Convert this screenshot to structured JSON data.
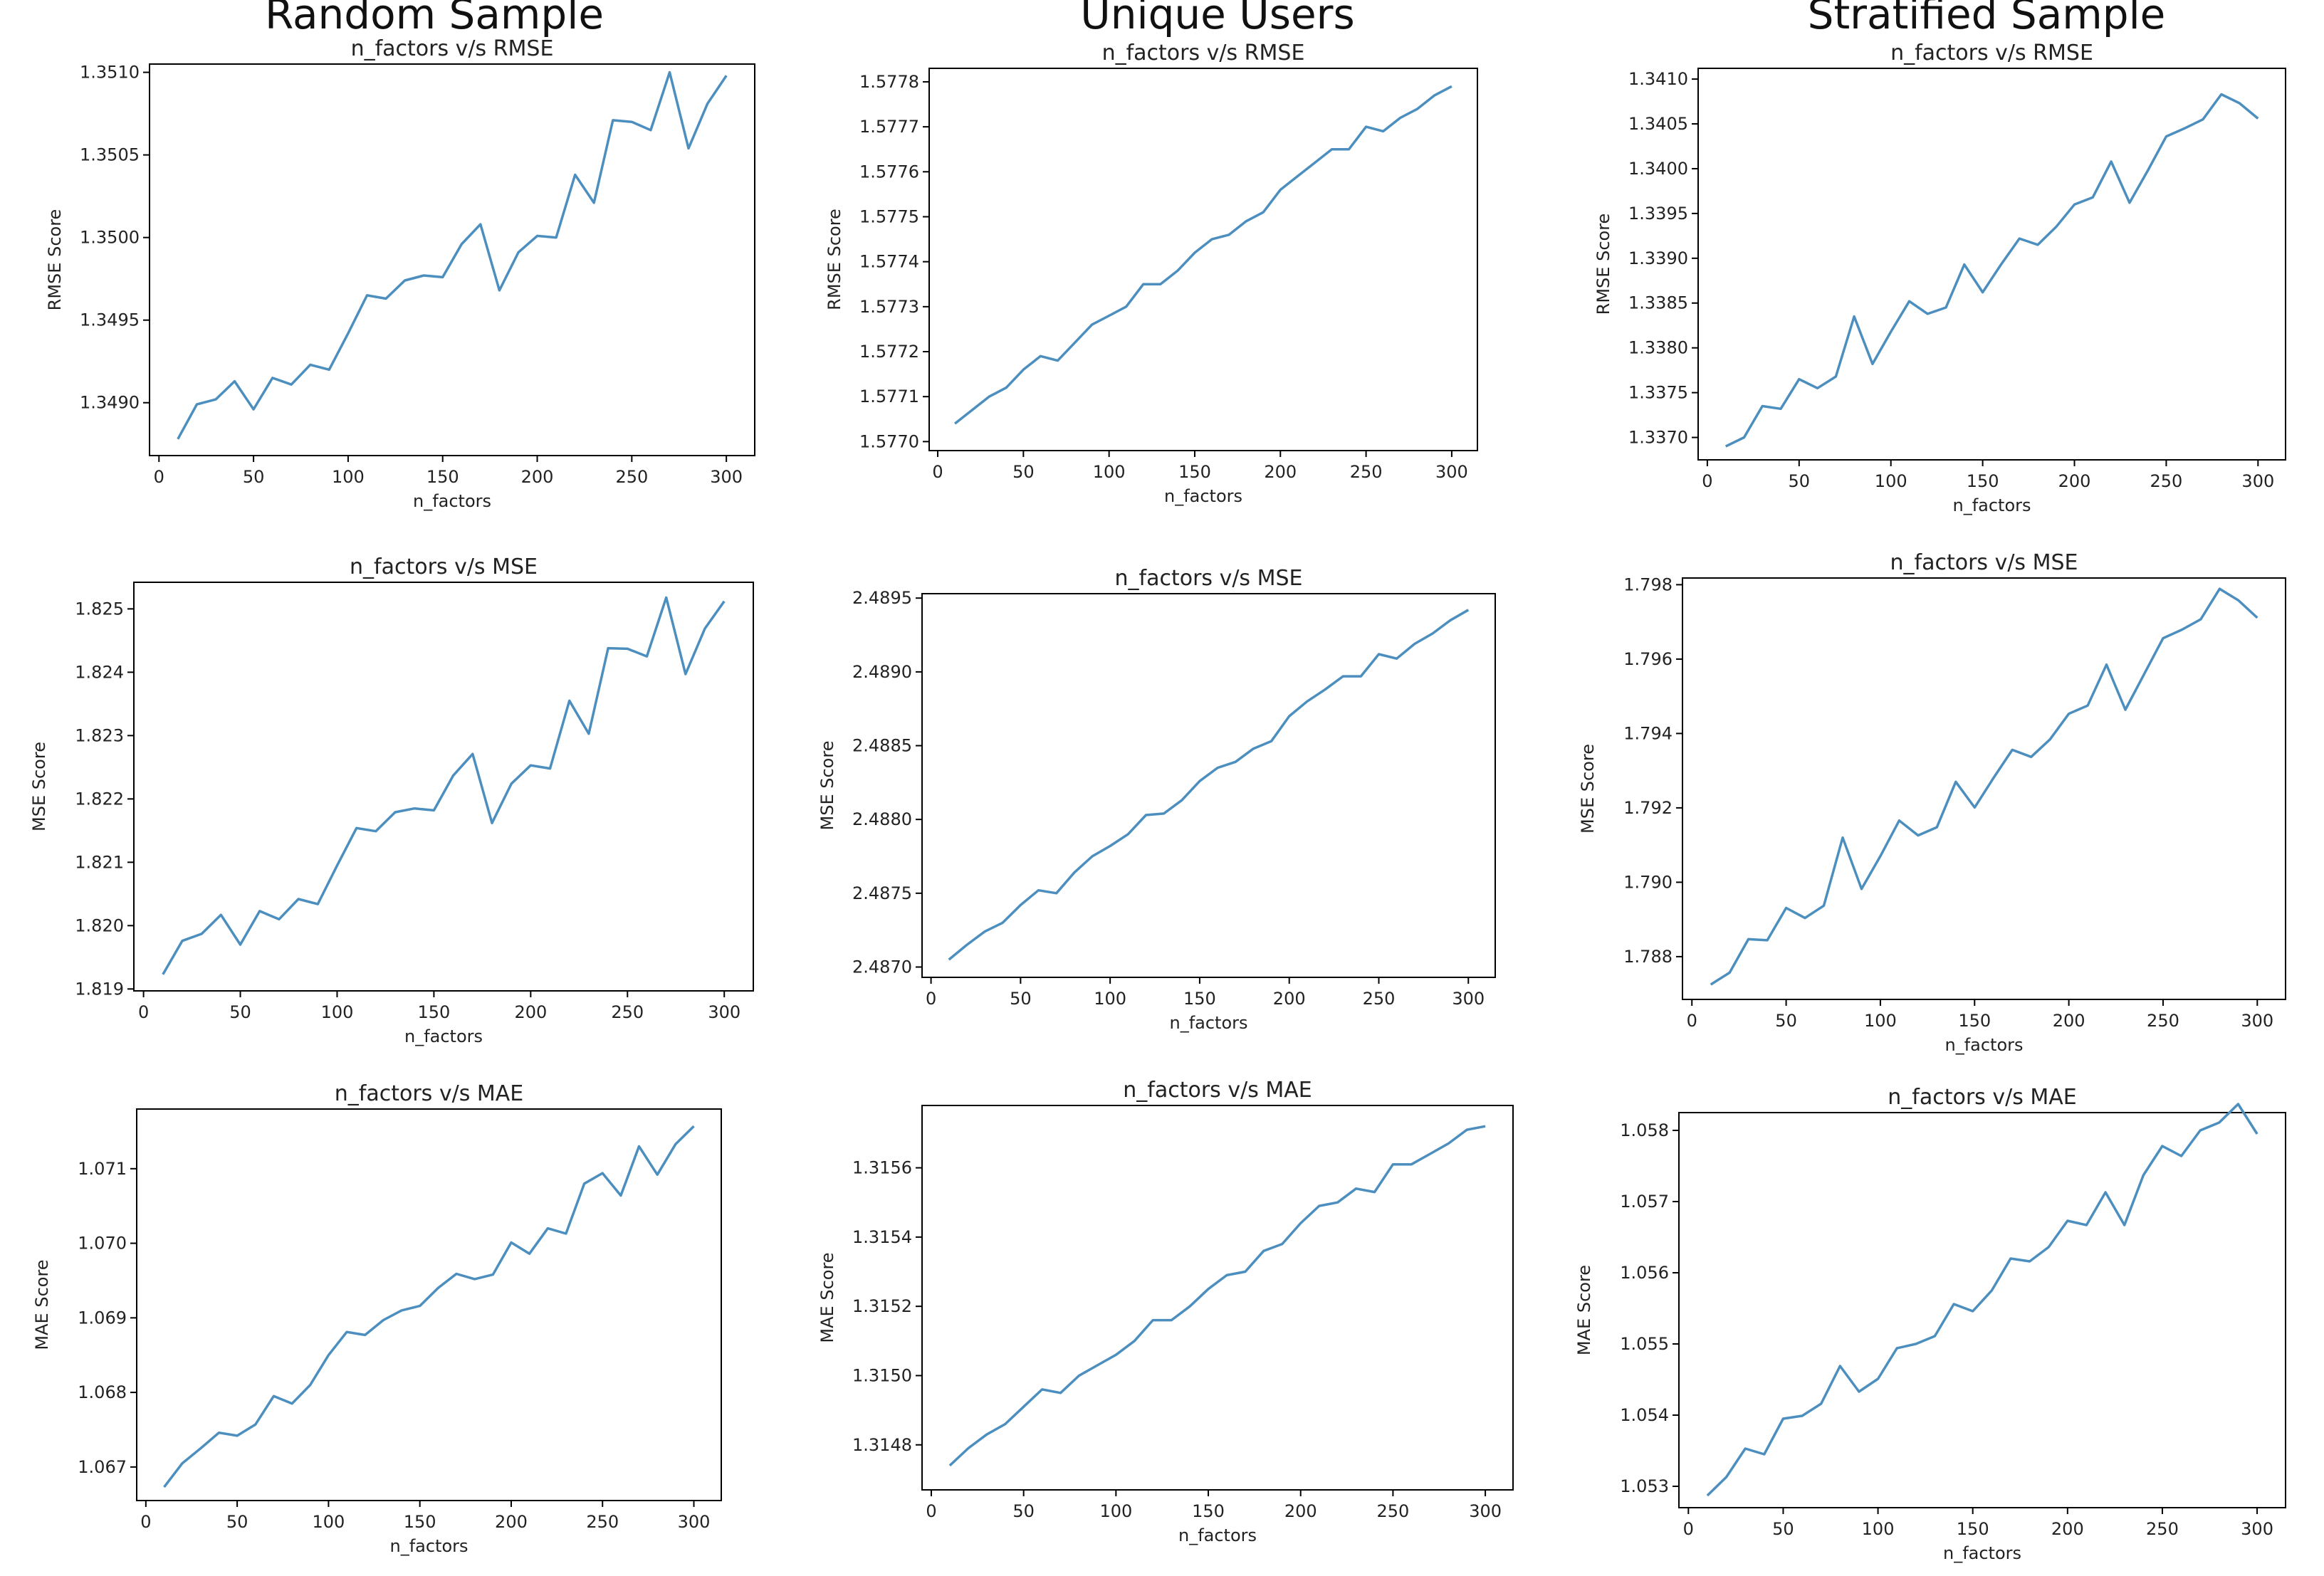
{
  "columns": [
    "Random Sample",
    "Unique Users",
    "Stratified Sample"
  ],
  "style": {
    "line_color": "#4c8fbf",
    "axis_color": "#000000",
    "text_color": "#222222"
  },
  "chart_data": [
    {
      "type": "line",
      "title": "n_factors v/s RMSE",
      "xlabel": "n_factors",
      "ylabel": "RMSE Score",
      "xlim": [
        -5,
        315
      ],
      "ylim": [
        1.34868,
        1.35105
      ],
      "xticks": [
        "0",
        "50",
        "100",
        "150",
        "200",
        "250",
        "300"
      ],
      "yticks": [
        "1.3490",
        "1.3495",
        "1.3500",
        "1.3505",
        "1.3510"
      ],
      "series": [
        {
          "x": [
            10,
            20,
            30,
            40,
            50,
            60,
            70,
            80,
            90,
            100,
            110,
            120,
            130,
            140,
            150,
            160,
            170,
            180,
            190,
            200,
            210,
            220,
            230,
            240,
            250,
            260,
            270,
            280,
            290,
            300
          ],
          "y": [
            1.34878,
            1.34899,
            1.34902,
            1.34913,
            1.34896,
            1.34915,
            1.34911,
            1.34923,
            1.3492,
            1.34942,
            1.34965,
            1.34963,
            1.34974,
            1.34977,
            1.34976,
            1.34996,
            1.35008,
            1.34968,
            1.34991,
            1.35001,
            1.35,
            1.35038,
            1.35021,
            1.35071,
            1.3507,
            1.35065,
            1.351,
            1.35054,
            1.35081,
            1.35098
          ]
        }
      ]
    },
    {
      "type": "line",
      "title": "n_factors v/s RMSE",
      "xlabel": "n_factors",
      "ylabel": "RMSE Score",
      "xlim": [
        -5,
        315
      ],
      "ylim": [
        1.57698,
        1.57783
      ],
      "xticks": [
        "0",
        "50",
        "100",
        "150",
        "200",
        "250",
        "300"
      ],
      "yticks": [
        "1.5770",
        "1.5771",
        "1.5772",
        "1.5773",
        "1.5774",
        "1.5775",
        "1.5776",
        "1.5777",
        "1.5778"
      ],
      "series": [
        {
          "x": [
            10,
            20,
            30,
            40,
            50,
            60,
            70,
            80,
            90,
            100,
            110,
            120,
            130,
            140,
            150,
            160,
            170,
            180,
            190,
            200,
            210,
            220,
            230,
            240,
            250,
            260,
            270,
            280,
            290,
            300
          ],
          "y": [
            1.57704,
            1.57707,
            1.5771,
            1.57712,
            1.57716,
            1.57719,
            1.57718,
            1.57722,
            1.57726,
            1.57728,
            1.5773,
            1.57735,
            1.57735,
            1.57738,
            1.57742,
            1.57745,
            1.57746,
            1.57749,
            1.57751,
            1.57756,
            1.57759,
            1.57762,
            1.57765,
            1.57765,
            1.5777,
            1.57769,
            1.57772,
            1.57774,
            1.57777,
            1.57779
          ]
        }
      ]
    },
    {
      "type": "line",
      "title": "n_factors v/s RMSE",
      "xlabel": "n_factors",
      "ylabel": "RMSE Score",
      "xlim": [
        -5,
        315
      ],
      "ylim": [
        1.33675,
        1.34112
      ],
      "xticks": [
        "0",
        "50",
        "100",
        "150",
        "200",
        "250",
        "300"
      ],
      "yticks": [
        "1.3370",
        "1.3375",
        "1.3380",
        "1.3385",
        "1.3390",
        "1.3395",
        "1.3400",
        "1.3405",
        "1.3410"
      ],
      "series": [
        {
          "x": [
            10,
            20,
            30,
            40,
            50,
            60,
            70,
            80,
            90,
            100,
            110,
            120,
            130,
            140,
            150,
            160,
            170,
            180,
            190,
            200,
            210,
            220,
            230,
            240,
            250,
            260,
            270,
            280,
            290,
            300
          ],
          "y": [
            1.3369,
            1.337,
            1.33735,
            1.33732,
            1.33765,
            1.33755,
            1.33768,
            1.33835,
            1.33782,
            1.33818,
            1.33852,
            1.33838,
            1.33845,
            1.33893,
            1.33862,
            1.33893,
            1.33922,
            1.33915,
            1.33935,
            1.3396,
            1.33968,
            1.34008,
            1.33962,
            1.33998,
            1.34036,
            1.34045,
            1.34055,
            1.34083,
            1.34073,
            1.34056
          ]
        }
      ]
    },
    {
      "type": "line",
      "title": "n_factors v/s MSE",
      "xlabel": "n_factors",
      "ylabel": "MSE Score",
      "xlim": [
        -5,
        315
      ],
      "ylim": [
        1.81897,
        1.82542
      ],
      "xticks": [
        "0",
        "50",
        "100",
        "150",
        "200",
        "250",
        "300"
      ],
      "yticks": [
        "1.819",
        "1.820",
        "1.821",
        "1.822",
        "1.823",
        "1.824",
        "1.825"
      ],
      "series": [
        {
          "x": [
            10,
            20,
            30,
            40,
            50,
            60,
            70,
            80,
            90,
            100,
            110,
            120,
            130,
            140,
            150,
            160,
            170,
            180,
            190,
            200,
            210,
            220,
            230,
            240,
            250,
            260,
            270,
            280,
            290,
            300
          ],
          "y": [
            1.81923,
            1.81976,
            1.81987,
            1.82017,
            1.8197,
            1.82023,
            1.8201,
            1.82042,
            1.82034,
            1.82095,
            1.82154,
            1.82149,
            1.82179,
            1.82185,
            1.82182,
            1.82237,
            1.82271,
            1.82162,
            1.82224,
            1.82253,
            1.82248,
            1.82355,
            1.82303,
            1.82438,
            1.82437,
            1.82425,
            1.82518,
            1.82397,
            1.82469,
            1.82512
          ]
        }
      ]
    },
    {
      "type": "line",
      "title": "n_factors v/s MSE",
      "xlabel": "n_factors",
      "ylabel": "MSE Score",
      "xlim": [
        -5,
        315
      ],
      "ylim": [
        2.48693,
        2.48953
      ],
      "xticks": [
        "0",
        "50",
        "100",
        "150",
        "200",
        "250",
        "300"
      ],
      "yticks": [
        "2.4870",
        "2.4875",
        "2.4880",
        "2.4885",
        "2.4890",
        "2.4895"
      ],
      "series": [
        {
          "x": [
            10,
            20,
            30,
            40,
            50,
            60,
            70,
            80,
            90,
            100,
            110,
            120,
            130,
            140,
            150,
            160,
            170,
            180,
            190,
            200,
            210,
            220,
            230,
            240,
            250,
            260,
            270,
            280,
            290,
            300
          ],
          "y": [
            2.48705,
            2.48715,
            2.48724,
            2.4873,
            2.48742,
            2.48752,
            2.4875,
            2.48764,
            2.48775,
            2.48782,
            2.4879,
            2.48803,
            2.48804,
            2.48813,
            2.48826,
            2.48835,
            2.48839,
            2.48848,
            2.48853,
            2.4887,
            2.4888,
            2.48888,
            2.48897,
            2.48897,
            2.48912,
            2.48909,
            2.48919,
            2.48926,
            2.48935,
            2.48942
          ]
        }
      ]
    },
    {
      "type": "line",
      "title": "n_factors v/s MSE",
      "xlabel": "n_factors",
      "ylabel": "MSE Score",
      "xlim": [
        -5,
        315
      ],
      "ylim": [
        1.78685,
        1.79818
      ],
      "xticks": [
        "0",
        "50",
        "100",
        "150",
        "200",
        "250",
        "300"
      ],
      "yticks": [
        "1.788",
        "1.790",
        "1.792",
        "1.794",
        "1.796",
        "1.798"
      ],
      "series": [
        {
          "x": [
            10,
            20,
            30,
            40,
            50,
            60,
            70,
            80,
            90,
            100,
            110,
            120,
            130,
            140,
            150,
            160,
            170,
            180,
            190,
            200,
            210,
            220,
            230,
            240,
            250,
            260,
            270,
            280,
            290,
            300
          ],
          "y": [
            1.78725,
            1.78757,
            1.78847,
            1.78844,
            1.78931,
            1.78904,
            1.78937,
            1.7912,
            1.78982,
            1.7907,
            1.79166,
            1.79126,
            1.79148,
            1.7927,
            1.79201,
            1.7928,
            1.79356,
            1.79337,
            1.79384,
            1.79453,
            1.79475,
            1.79585,
            1.79464,
            1.7956,
            1.79656,
            1.79679,
            1.79707,
            1.79789,
            1.79758,
            1.79711
          ]
        }
      ]
    },
    {
      "type": "line",
      "title": "n_factors v/s MAE",
      "xlabel": "n_factors",
      "ylabel": "MAE Score",
      "xlim": [
        -5,
        315
      ],
      "ylim": [
        1.06655,
        1.0718
      ],
      "xticks": [
        "0",
        "50",
        "100",
        "150",
        "200",
        "250",
        "300"
      ],
      "yticks": [
        "1.067",
        "1.068",
        "1.069",
        "1.070",
        "1.071"
      ],
      "series": [
        {
          "x": [
            10,
            20,
            30,
            40,
            50,
            60,
            70,
            80,
            90,
            100,
            110,
            120,
            130,
            140,
            150,
            160,
            170,
            180,
            190,
            200,
            210,
            220,
            230,
            240,
            250,
            260,
            270,
            280,
            290,
            300
          ],
          "y": [
            1.06673,
            1.06705,
            1.06725,
            1.06746,
            1.06742,
            1.06757,
            1.06795,
            1.06785,
            1.0681,
            1.0685,
            1.06881,
            1.06877,
            1.06897,
            1.0691,
            1.06916,
            1.0694,
            1.06959,
            1.06952,
            1.06958,
            1.07001,
            1.06986,
            1.0702,
            1.07013,
            1.0708,
            1.07094,
            1.07064,
            1.0713,
            1.07092,
            1.07133,
            1.07157
          ]
        }
      ]
    },
    {
      "type": "line",
      "title": "n_factors v/s MAE",
      "xlabel": "n_factors",
      "ylabel": "MAE Score",
      "xlim": [
        -5,
        315
      ],
      "ylim": [
        1.31467,
        1.31578
      ],
      "xticks": [
        "0",
        "50",
        "100",
        "150",
        "200",
        "250",
        "300"
      ],
      "yticks": [
        "1.3148",
        "1.3150",
        "1.3152",
        "1.3154",
        "1.3156"
      ],
      "series": [
        {
          "x": [
            10,
            20,
            30,
            40,
            50,
            60,
            70,
            80,
            90,
            100,
            110,
            120,
            130,
            140,
            150,
            160,
            170,
            180,
            190,
            200,
            210,
            220,
            230,
            240,
            250,
            260,
            270,
            280,
            290,
            300
          ],
          "y": [
            1.31474,
            1.31479,
            1.31483,
            1.31486,
            1.31491,
            1.31496,
            1.31495,
            1.315,
            1.31503,
            1.31506,
            1.3151,
            1.31516,
            1.31516,
            1.3152,
            1.31525,
            1.31529,
            1.3153,
            1.31536,
            1.31538,
            1.31544,
            1.31549,
            1.3155,
            1.31554,
            1.31553,
            1.31561,
            1.31561,
            1.31564,
            1.31567,
            1.31571,
            1.31572
          ]
        }
      ]
    },
    {
      "type": "line",
      "title": "n_factors v/s MAE",
      "xlabel": "n_factors",
      "ylabel": "MAE Score",
      "xlim": [
        -5,
        315
      ],
      "ylim": [
        1.0527,
        1.05825
      ],
      "xticks": [
        "0",
        "50",
        "100",
        "150",
        "200",
        "250",
        "300"
      ],
      "yticks": [
        "1.053",
        "1.054",
        "1.055",
        "1.056",
        "1.057",
        "1.058"
      ],
      "series": [
        {
          "x": [
            10,
            20,
            30,
            40,
            50,
            60,
            70,
            80,
            90,
            100,
            110,
            120,
            130,
            140,
            150,
            160,
            170,
            180,
            190,
            200,
            210,
            220,
            230,
            240,
            250,
            260,
            270,
            280,
            290,
            300
          ],
          "y": [
            1.05287,
            1.05313,
            1.05353,
            1.05345,
            1.05395,
            1.05399,
            1.05416,
            1.05469,
            1.05433,
            1.05451,
            1.05494,
            1.055,
            1.05511,
            1.05556,
            1.05546,
            1.05575,
            1.0562,
            1.05616,
            1.05636,
            1.05673,
            1.05667,
            1.05713,
            1.05667,
            1.05737,
            1.05778,
            1.05764,
            1.058,
            1.05811,
            1.05837,
            1.05795
          ]
        }
      ]
    }
  ]
}
